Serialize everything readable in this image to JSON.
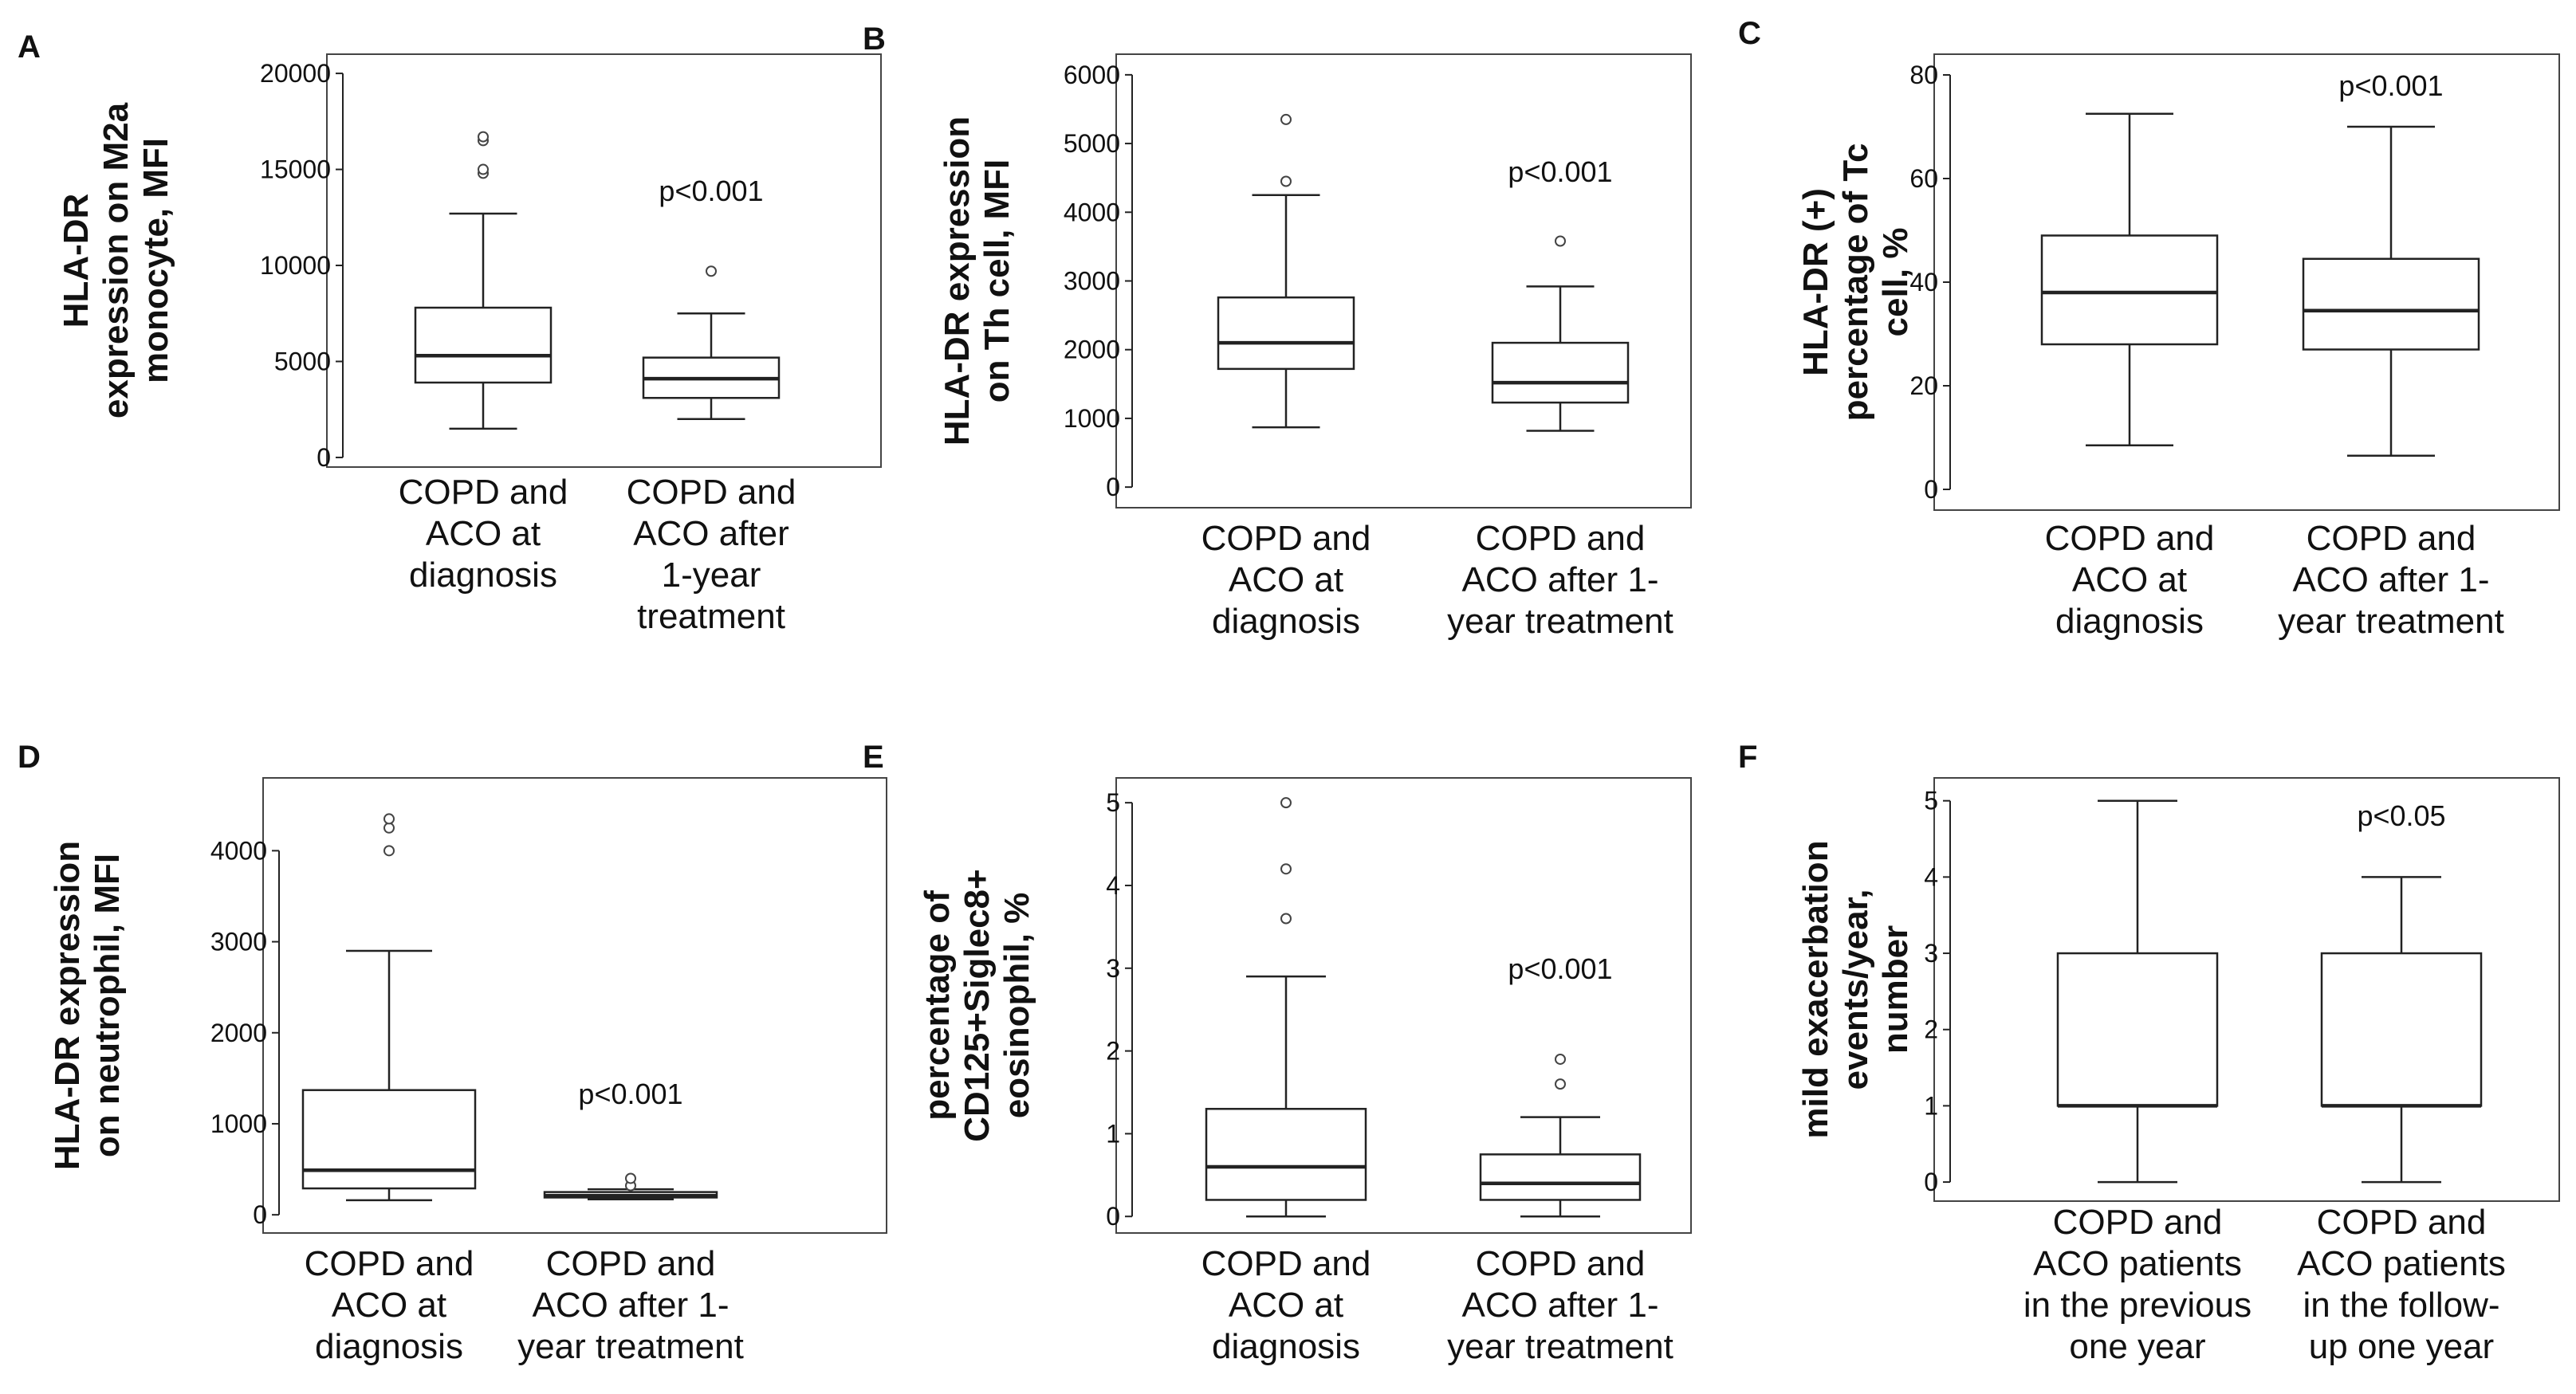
{
  "chart_data": [
    {
      "type": "box",
      "panel": "A",
      "ylabel": [
        "HLA-DR",
        "expression on M2a",
        "monocyte, MFI"
      ],
      "yticks": [
        0,
        5000,
        10000,
        15000,
        20000
      ],
      "ylim": [
        -500,
        21000
      ],
      "annotation": "p<0.001",
      "annotation_value": 13500,
      "annotation_category": 1,
      "categories": [
        [
          "COPD and",
          "ACO at",
          "diagnosis"
        ],
        [
          "COPD and",
          "ACO after",
          "1-year",
          "treatment"
        ]
      ],
      "boxes": [
        {
          "min": 1500,
          "q1": 3900,
          "median": 5300,
          "q3": 7800,
          "max": 12700,
          "outliers": [
            14800,
            15000,
            16500,
            16700
          ]
        },
        {
          "min": 2000,
          "q1": 3100,
          "median": 4100,
          "q3": 5200,
          "max": 7500,
          "outliers": [
            9700
          ]
        }
      ]
    },
    {
      "type": "box",
      "panel": "B",
      "ylabel": [
        "HLA-DR expression",
        "on Th cell, MFI"
      ],
      "yticks": [
        0,
        1000,
        2000,
        3000,
        4000,
        5000,
        6000
      ],
      "ylim": [
        -300,
        6300
      ],
      "annotation": "p<0.001",
      "annotation_value": 4300,
      "annotation_category": 1,
      "categories": [
        [
          "COPD and",
          "ACO at",
          "diagnosis"
        ],
        [
          "COPD and",
          "ACO after 1-",
          "year treatment"
        ]
      ],
      "boxes": [
        {
          "min": 870,
          "q1": 1720,
          "median": 2100,
          "q3": 2760,
          "max": 4250,
          "outliers": [
            4450,
            5350
          ]
        },
        {
          "min": 820,
          "q1": 1230,
          "median": 1520,
          "q3": 2100,
          "max": 2920,
          "outliers": [
            3580
          ]
        }
      ]
    },
    {
      "type": "box",
      "panel": "C",
      "ylabel": [
        "HLA-DR (+)",
        "percentage of Tc",
        "cell, %"
      ],
      "yticks": [
        0,
        20,
        40,
        60,
        80
      ],
      "ylim": [
        -4,
        84
      ],
      "annotation": "p<0.001",
      "annotation_value": 75.5,
      "annotation_category": 1,
      "categories": [
        [
          "COPD and",
          "ACO at",
          "diagnosis"
        ],
        [
          "COPD and",
          "ACO after 1-",
          "year treatment"
        ]
      ],
      "boxes": [
        {
          "min": 8.5,
          "q1": 28,
          "median": 38,
          "q3": 49,
          "max": 72.5,
          "outliers": []
        },
        {
          "min": 6.5,
          "q1": 27,
          "median": 34.5,
          "q3": 44.5,
          "max": 70,
          "outliers": []
        }
      ]
    },
    {
      "type": "box",
      "panel": "D",
      "ylabel": [
        "HLA-DR expression",
        "on neutrophil, MFI"
      ],
      "yticks": [
        0,
        1000,
        2000,
        3000,
        4000
      ],
      "ylim": [
        -200,
        4800
      ],
      "annotation": "p<0.001",
      "annotation_value": 1250,
      "annotation_category": 1,
      "categories": [
        [
          "COPD and",
          "ACO at",
          "diagnosis"
        ],
        [
          "COPD and",
          "ACO after 1-",
          "year treatment"
        ]
      ],
      "boxes": [
        {
          "min": 160,
          "q1": 290,
          "median": 490,
          "q3": 1370,
          "max": 2900,
          "outliers": [
            4000,
            4250,
            4350
          ]
        },
        {
          "min": 170,
          "q1": 190,
          "median": 210,
          "q3": 250,
          "max": 280,
          "outliers": [
            320,
            400
          ]
        }
      ]
    },
    {
      "type": "box",
      "panel": "E",
      "ylabel": [
        "percentage of",
        "CD125+Siglec8+",
        "eosinophil, %"
      ],
      "yticks": [
        0,
        1,
        2,
        3,
        4,
        5
      ],
      "ylim": [
        -0.2,
        5.3
      ],
      "annotation": "p<0.001",
      "annotation_value": 2.85,
      "annotation_category": 1,
      "categories": [
        [
          "COPD and",
          "ACO at",
          "diagnosis"
        ],
        [
          "COPD and",
          "ACO after 1-",
          "year treatment"
        ]
      ],
      "boxes": [
        {
          "min": 0,
          "q1": 0.2,
          "median": 0.6,
          "q3": 1.3,
          "max": 2.9,
          "outliers": [
            3.6,
            4.2,
            5.0
          ]
        },
        {
          "min": 0,
          "q1": 0.2,
          "median": 0.4,
          "q3": 0.75,
          "max": 1.2,
          "outliers": [
            1.6,
            1.9
          ]
        }
      ]
    },
    {
      "type": "box",
      "panel": "F",
      "ylabel": [
        "mild exacerbation",
        "events/year,",
        "number"
      ],
      "yticks": [
        0,
        1,
        2,
        3,
        4,
        5
      ],
      "ylim": [
        -0.25,
        5.3
      ],
      "annotation": "p<0.05",
      "annotation_value": 4.65,
      "annotation_category": 1,
      "categories": [
        [
          "COPD and",
          "ACO patients",
          "in the previous",
          "one year"
        ],
        [
          "COPD and",
          "ACO patients",
          "in the follow-",
          "up one year"
        ]
      ],
      "boxes": [
        {
          "min": 0,
          "q1": 1,
          "median": 1,
          "q3": 3,
          "max": 5,
          "outliers": []
        },
        {
          "min": 0,
          "q1": 1,
          "median": 1,
          "q3": 3,
          "max": 4,
          "outliers": []
        }
      ]
    }
  ]
}
